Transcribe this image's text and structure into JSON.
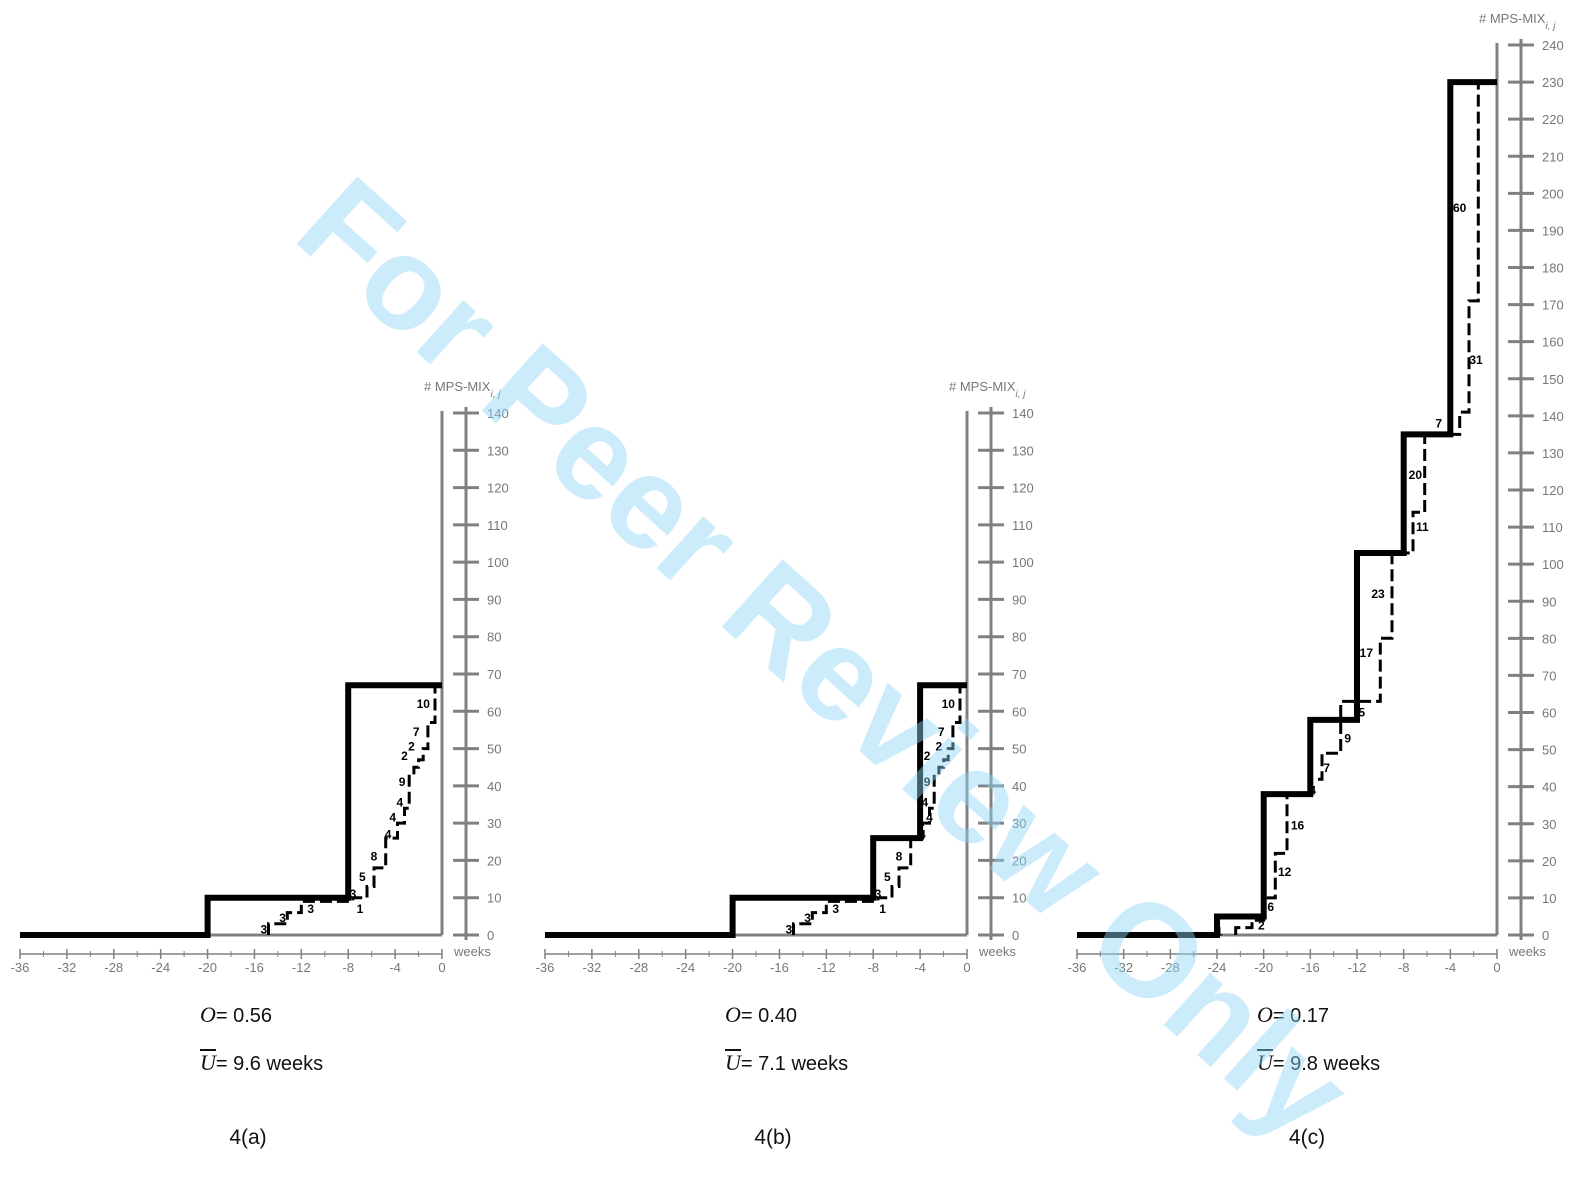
{
  "figure": {
    "watermark": "For Peer Review Only"
  },
  "chart_data": [
    {
      "type": "line",
      "panel_id": "4(a)",
      "caption": "4(a)",
      "ylabel": "# MPS-MIX",
      "ylabel_sub": "i, j",
      "xlabel": "weeks",
      "xlim": [
        -36,
        0
      ],
      "ylim": [
        0,
        140
      ],
      "x_ticks": [
        -36,
        -32,
        -28,
        -24,
        -20,
        -16,
        -12,
        -8,
        -4,
        0
      ],
      "y_ticks": [
        0,
        10,
        20,
        30,
        40,
        50,
        60,
        70,
        80,
        90,
        100,
        110,
        120,
        130,
        140
      ],
      "y_axis_max_tick": 140,
      "series": [
        {
          "style": "solid-thick",
          "points": [
            [
              -36,
              0
            ],
            [
              -20,
              0
            ],
            [
              -20,
              10
            ],
            [
              -8,
              10
            ],
            [
              -8,
              67
            ],
            [
              0,
              67
            ]
          ]
        },
        {
          "style": "dashed",
          "points": [
            [
              -14.8,
              0
            ],
            [
              -14.8,
              3
            ],
            [
              -13.2,
              3
            ],
            [
              -13.2,
              6
            ],
            [
              -12,
              6
            ],
            [
              -12,
              9
            ],
            [
              -7.6,
              9
            ],
            [
              -7.6,
              10
            ],
            [
              -6.4,
              10
            ],
            [
              -6.4,
              13
            ],
            [
              -5.8,
              13
            ],
            [
              -5.8,
              18
            ],
            [
              -4.8,
              18
            ],
            [
              -4.8,
              26
            ],
            [
              -3.8,
              26
            ],
            [
              -3.8,
              30
            ],
            [
              -3.2,
              30
            ],
            [
              -3.2,
              34
            ],
            [
              -2.8,
              34
            ],
            [
              -2.8,
              43
            ],
            [
              -2.4,
              43
            ],
            [
              -2.4,
              45
            ],
            [
              -2.0,
              45
            ],
            [
              -2.0,
              47
            ],
            [
              -1.6,
              47
            ],
            [
              -1.6,
              50
            ],
            [
              -1.2,
              50
            ],
            [
              -1.2,
              57
            ],
            [
              -0.6,
              57
            ],
            [
              -0.6,
              67
            ]
          ]
        }
      ],
      "step_labels": [
        {
          "text": "3",
          "x": -15.2,
          "y": 1.5
        },
        {
          "text": "3",
          "x": -13.6,
          "y": 4.5
        },
        {
          "text": "3",
          "x": -11.2,
          "y": 7.0
        },
        {
          "text": "1",
          "x": -7.0,
          "y": 7.0
        },
        {
          "text": "3",
          "x": -7.6,
          "y": 11.0
        },
        {
          "text": "5",
          "x": -6.8,
          "y": 15.5
        },
        {
          "text": "8",
          "x": -5.8,
          "y": 21.0
        },
        {
          "text": "4",
          "x": -4.6,
          "y": 27.0
        },
        {
          "text": "4",
          "x": -4.2,
          "y": 31.5
        },
        {
          "text": "4",
          "x": -3.6,
          "y": 35.5
        },
        {
          "text": "9",
          "x": -3.4,
          "y": 41.0
        },
        {
          "text": "2",
          "x": -3.2,
          "y": 48.0
        },
        {
          "text": "2",
          "x": -2.6,
          "y": 50.5
        },
        {
          "text": "7",
          "x": -2.2,
          "y": 54.5
        },
        {
          "text": "10",
          "x": -1.6,
          "y": 62.0
        }
      ],
      "stats": {
        "O_symbol": "O",
        "O_text": "= 0.56",
        "U_symbol": "U",
        "U_text": "= 9.6 weeks"
      }
    },
    {
      "type": "line",
      "panel_id": "4(b)",
      "caption": "4(b)",
      "ylabel": "# MPS-MIX",
      "ylabel_sub": "i, j",
      "xlabel": "weeks",
      "xlim": [
        -36,
        0
      ],
      "ylim": [
        0,
        140
      ],
      "x_ticks": [
        -36,
        -32,
        -28,
        -24,
        -20,
        -16,
        -12,
        -8,
        -4,
        0
      ],
      "y_ticks": [
        0,
        10,
        20,
        30,
        40,
        50,
        60,
        70,
        80,
        90,
        100,
        110,
        120,
        130,
        140
      ],
      "y_axis_max_tick": 140,
      "series": [
        {
          "style": "solid-thick",
          "points": [
            [
              -36,
              0
            ],
            [
              -20,
              0
            ],
            [
              -20,
              10
            ],
            [
              -8,
              10
            ],
            [
              -8,
              26
            ],
            [
              -4,
              26
            ],
            [
              -4,
              67
            ],
            [
              0,
              67
            ]
          ]
        },
        {
          "style": "dashed",
          "points": [
            [
              -14.8,
              0
            ],
            [
              -14.8,
              3
            ],
            [
              -13.2,
              3
            ],
            [
              -13.2,
              6
            ],
            [
              -12,
              6
            ],
            [
              -12,
              9
            ],
            [
              -7.6,
              9
            ],
            [
              -7.6,
              10
            ],
            [
              -6.4,
              10
            ],
            [
              -6.4,
              13
            ],
            [
              -5.8,
              13
            ],
            [
              -5.8,
              18
            ],
            [
              -4.8,
              18
            ],
            [
              -4.8,
              26
            ],
            [
              -3.8,
              26
            ],
            [
              -3.8,
              30
            ],
            [
              -3.2,
              30
            ],
            [
              -3.2,
              34
            ],
            [
              -2.8,
              34
            ],
            [
              -2.8,
              43
            ],
            [
              -2.4,
              43
            ],
            [
              -2.4,
              45
            ],
            [
              -2.0,
              45
            ],
            [
              -2.0,
              47
            ],
            [
              -1.6,
              47
            ],
            [
              -1.6,
              50
            ],
            [
              -1.2,
              50
            ],
            [
              -1.2,
              57
            ],
            [
              -0.6,
              57
            ],
            [
              -0.6,
              67
            ]
          ]
        }
      ],
      "step_labels": [
        {
          "text": "3",
          "x": -15.2,
          "y": 1.5
        },
        {
          "text": "3",
          "x": -13.6,
          "y": 4.5
        },
        {
          "text": "3",
          "x": -11.2,
          "y": 7.0
        },
        {
          "text": "1",
          "x": -7.2,
          "y": 7.0
        },
        {
          "text": "3",
          "x": -7.6,
          "y": 11.0
        },
        {
          "text": "5",
          "x": -6.8,
          "y": 15.5
        },
        {
          "text": "8",
          "x": -5.8,
          "y": 21.0
        },
        {
          "text": "4",
          "x": -3.8,
          "y": 27.0
        },
        {
          "text": "4",
          "x": -3.2,
          "y": 31.5
        },
        {
          "text": "4",
          "x": -3.6,
          "y": 35.5
        },
        {
          "text": "9",
          "x": -3.4,
          "y": 41.0
        },
        {
          "text": "2",
          "x": -3.4,
          "y": 48.0
        },
        {
          "text": "2",
          "x": -2.4,
          "y": 50.5
        },
        {
          "text": "7",
          "x": -2.2,
          "y": 54.5
        },
        {
          "text": "10",
          "x": -1.6,
          "y": 62.0
        }
      ],
      "stats": {
        "O_symbol": "O",
        "O_text": "= 0.40",
        "U_symbol": "U",
        "U_text": "= 7.1 weeks"
      }
    },
    {
      "type": "line",
      "panel_id": "4(c)",
      "caption": "4(c)",
      "ylabel": "# MPS-MIX",
      "ylabel_sub": "i, j",
      "xlabel": "weeks",
      "xlim": [
        -36,
        0
      ],
      "ylim": [
        0,
        240
      ],
      "x_ticks": [
        -36,
        -32,
        -28,
        -24,
        -20,
        -16,
        -12,
        -8,
        -4,
        0
      ],
      "y_ticks": [
        0,
        10,
        20,
        30,
        40,
        50,
        60,
        70,
        80,
        90,
        100,
        110,
        120,
        130,
        140,
        150,
        160,
        170,
        180,
        190,
        200,
        210,
        220,
        230,
        240
      ],
      "y_axis_max_tick": 240,
      "series": [
        {
          "style": "solid-thick",
          "points": [
            [
              -36,
              0
            ],
            [
              -24,
              0
            ],
            [
              -24,
              5
            ],
            [
              -20,
              5
            ],
            [
              -20,
              38
            ],
            [
              -16,
              38
            ],
            [
              -16,
              58
            ],
            [
              -12,
              58
            ],
            [
              -12,
              103
            ],
            [
              -8,
              103
            ],
            [
              -8,
              135
            ],
            [
              -4,
              135
            ],
            [
              -4,
              230
            ],
            [
              0,
              230
            ]
          ]
        },
        {
          "style": "dashed",
          "points": [
            [
              -22.4,
              0
            ],
            [
              -22.4,
              2
            ],
            [
              -21,
              2
            ],
            [
              -21,
              4
            ],
            [
              -20,
              4
            ],
            [
              -20,
              10
            ],
            [
              -19,
              10
            ],
            [
              -19,
              22
            ],
            [
              -18,
              22
            ],
            [
              -18,
              38
            ],
            [
              -16,
              38
            ],
            [
              -16,
              42
            ],
            [
              -15,
              42
            ],
            [
              -15,
              49
            ],
            [
              -13.4,
              49
            ],
            [
              -13.4,
              63
            ],
            [
              -10,
              63
            ],
            [
              -10,
              80
            ],
            [
              -9,
              80
            ],
            [
              -9,
              103
            ],
            [
              -7.2,
              103
            ],
            [
              -7.2,
              114
            ],
            [
              -6.2,
              114
            ],
            [
              -6.2,
              135
            ],
            [
              -3.2,
              135
            ],
            [
              -3.2,
              141
            ],
            [
              -2.4,
              141
            ],
            [
              -2.4,
              171
            ],
            [
              -1.6,
              171
            ],
            [
              -1.6,
              230
            ]
          ]
        }
      ],
      "step_labels": [
        {
          "text": "1",
          "x": -23.8,
          "y": 1.0
        },
        {
          "text": "2",
          "x": -20.2,
          "y": 2.5
        },
        {
          "text": "6",
          "x": -19.4,
          "y": 7.5
        },
        {
          "text": "12",
          "x": -18.2,
          "y": 17.0
        },
        {
          "text": "16",
          "x": -17.1,
          "y": 29.5
        },
        {
          "text": "4",
          "x": -15.8,
          "y": 39.0
        },
        {
          "text": "7",
          "x": -14.6,
          "y": 45.0
        },
        {
          "text": "9",
          "x": -12.8,
          "y": 53.0
        },
        {
          "text": "5",
          "x": -11.6,
          "y": 60.0
        },
        {
          "text": "17",
          "x": -11.2,
          "y": 76.0
        },
        {
          "text": "23",
          "x": -10.2,
          "y": 92.0
        },
        {
          "text": "11",
          "x": -6.4,
          "y": 110.0
        },
        {
          "text": "20",
          "x": -7.0,
          "y": 124.0
        },
        {
          "text": "7",
          "x": -5.0,
          "y": 138.0
        },
        {
          "text": "31",
          "x": -1.8,
          "y": 155.0
        },
        {
          "text": "60",
          "x": -3.2,
          "y": 196.0
        }
      ],
      "stats": {
        "O_symbol": "O",
        "O_text": "= 0.17",
        "U_symbol": "U",
        "U_text": "= 9.8 weeks"
      }
    }
  ]
}
